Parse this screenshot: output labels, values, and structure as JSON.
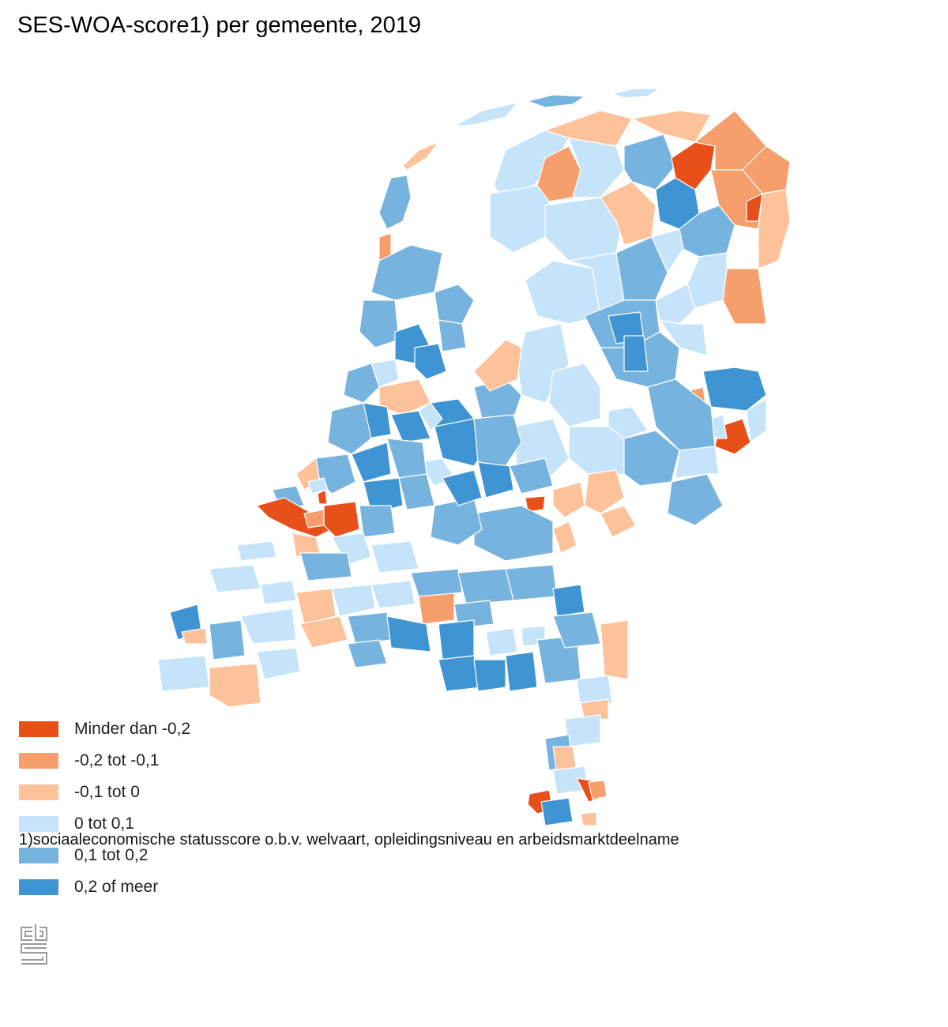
{
  "title": "SES-WOA-score1) per gemeente, 2019",
  "legend": {
    "items": [
      {
        "label": "Minder dan -0,2",
        "color": "#e8501a"
      },
      {
        "label": "-0,2 tot -0,1",
        "color": "#f69e6c"
      },
      {
        "label": "-0,1 tot 0",
        "color": "#fdc29a"
      },
      {
        "label": "0 tot 0,1",
        "color": "#c6e4f9"
      },
      {
        "label": "0,1 tot 0,2",
        "color": "#77b3df"
      },
      {
        "label": "0,2 of meer",
        "color": "#3f95d4"
      }
    ]
  },
  "footnote": "1)sociaaleconomische statusscore o.b.v. welvaart, opleidingsniveau en arbeidsmarktdeelname",
  "logo": {
    "icon": "cbs-logo-icon"
  }
}
